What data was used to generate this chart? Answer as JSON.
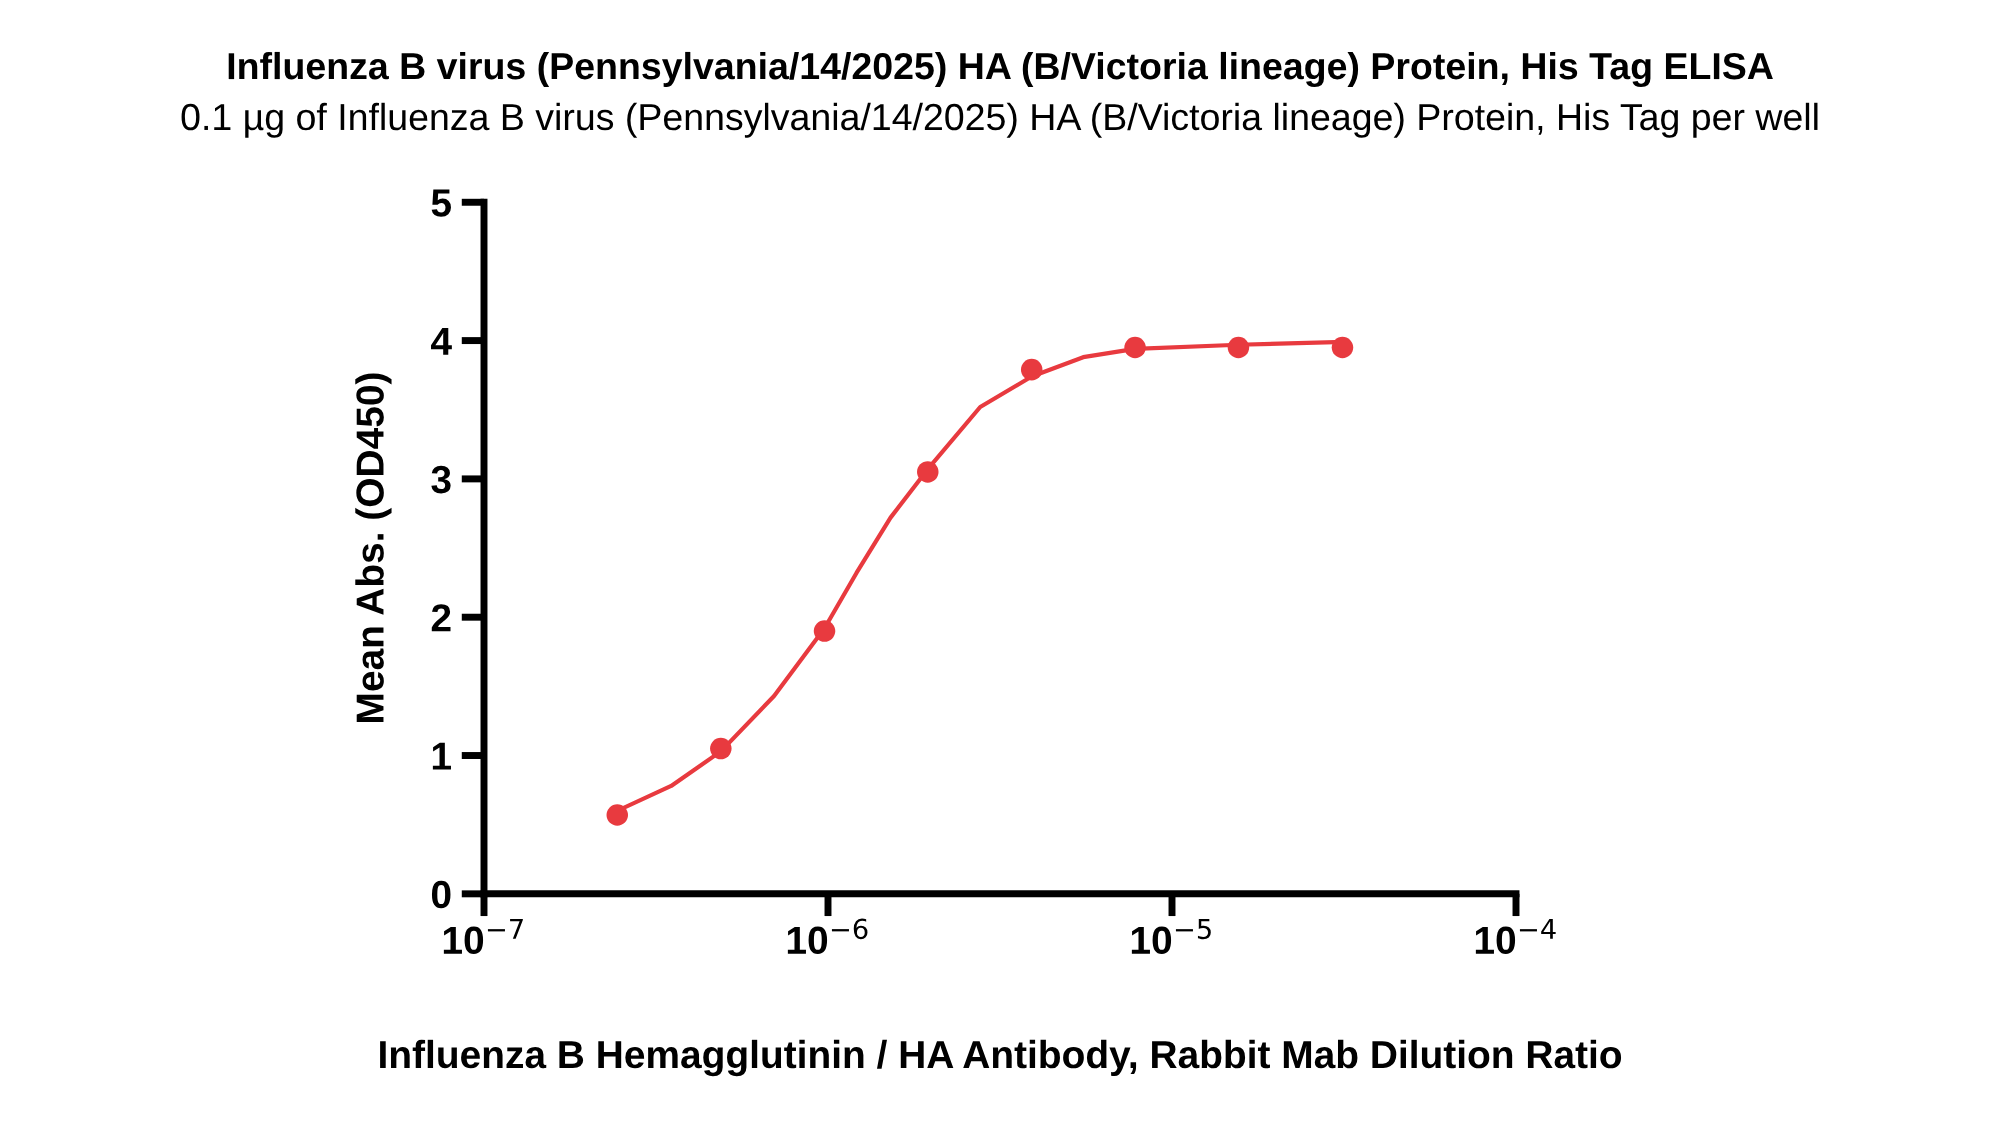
{
  "chart_data": {
    "type": "scatter",
    "title": "Influenza B virus (Pennsylvania/14/2025) HA (B/Victoria lineage) Protein, His Tag ELISA",
    "subtitle": "0.1 µg of Influenza B virus (Pennsylvania/14/2025) HA (B/Victoria lineage) Protein, His Tag per well",
    "xlabel": "Influenza B Hemagglutinin / HA Antibody, Rabbit Mab Dilution Ratio",
    "ylabel": "Mean Abs. (OD450)",
    "log": "x",
    "xlim": [
      1e-07,
      0.0001
    ],
    "xticks": [
      {
        "value": 1e-07,
        "label": "10$^{−7}$"
      },
      {
        "value": 1e-06,
        "label": "10$^{−6}$"
      },
      {
        "value": 1e-05,
        "label": "10$^{−5}$"
      },
      {
        "value": 0.0001,
        "label": "10$^{−4}$"
      }
    ],
    "ylim": [
      0,
      5
    ],
    "yticks": [
      0,
      1,
      2,
      3,
      4,
      5
    ],
    "grid": false,
    "series": [
      {
        "color": "#e83a3f",
        "marker": "circle",
        "x": [
          2.44e-07,
          4.88e-07,
          9.77e-07,
          1.95e-06,
          3.91e-06,
          7.81e-06,
          1.56e-05,
          3.13e-05
        ],
        "values": [
          0.57,
          1.05,
          1.9,
          3.05,
          3.79,
          3.95,
          3.95,
          3.95
        ]
      },
      {
        "type": "line",
        "color": "#e83a3f",
        "marker": "none",
        "line_style": "solid",
        "x": [
          2.44e-07,
          3.5e-07,
          4.88e-07,
          6.97e-07,
          9.77e-07,
          1.21e-06,
          1.52e-06,
          1.95e-06,
          2.77e-06,
          3.91e-06,
          5.52e-06,
          7.81e-06,
          1.56e-05,
          3.13e-05
        ],
        "values": [
          0.6,
          0.78,
          1.03,
          1.43,
          1.92,
          2.32,
          2.72,
          3.07,
          3.52,
          3.74,
          3.88,
          3.94,
          3.97,
          3.99
        ]
      }
    ]
  }
}
